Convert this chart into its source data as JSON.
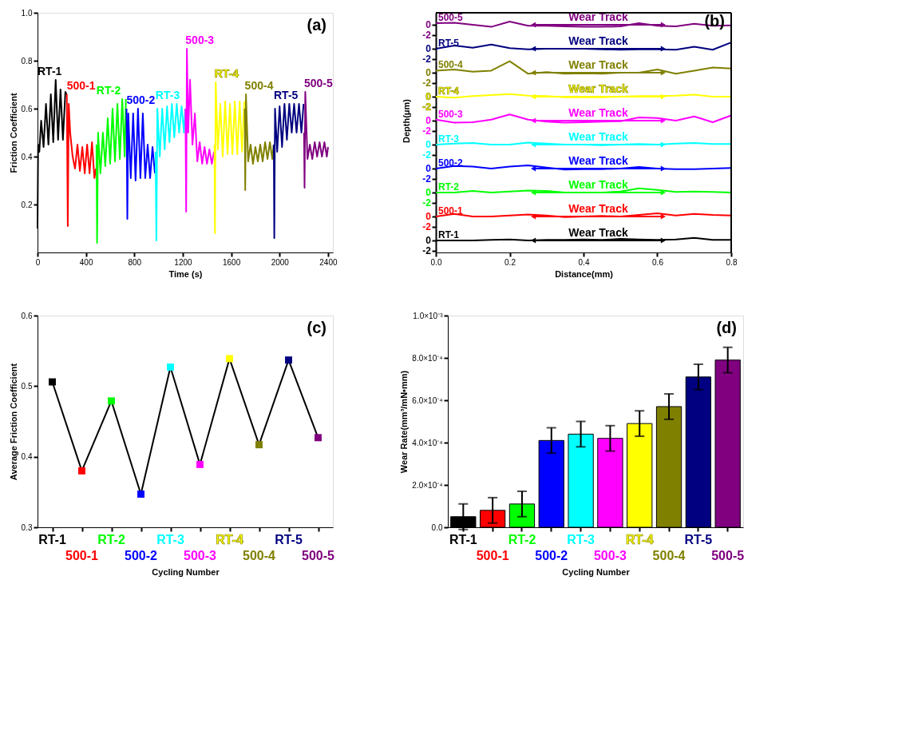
{
  "chart_data": [
    {
      "type": "line",
      "xlabel": "Time (s)",
      "ylabel": "Friction Coefficient",
      "xlim": [
        0,
        2440
      ],
      "ylim": [
        0,
        1.0
      ],
      "xticks": [
        0,
        400,
        800,
        1200,
        1600,
        2000,
        2400
      ],
      "yticks": [
        0.2,
        0.4,
        0.6,
        0.8,
        {
          "value": 1.0,
          "label": "1.0"
        }
      ],
      "grid": false,
      "legend": false,
      "annotations": [
        "(a)"
      ],
      "series": [
        {
          "name": "RT-1",
          "color": "#000000",
          "x": [
            0,
            5,
            15,
            30,
            50,
            70,
            90,
            110,
            130,
            150,
            170,
            190,
            210,
            230,
            240
          ],
          "values": [
            0.1,
            0.45,
            0.42,
            0.55,
            0.44,
            0.62,
            0.45,
            0.66,
            0.46,
            0.72,
            0.47,
            0.68,
            0.47,
            0.67,
            0.66
          ]
        },
        {
          "name": "500-1",
          "color": "#ff0000",
          "x": [
            242,
            250,
            258,
            270,
            290,
            310,
            330,
            350,
            370,
            390,
            410,
            430,
            450,
            470,
            483
          ],
          "values": [
            0.66,
            0.11,
            0.62,
            0.5,
            0.4,
            0.35,
            0.45,
            0.34,
            0.44,
            0.33,
            0.45,
            0.33,
            0.46,
            0.31,
            0.35
          ]
        },
        {
          "name": "RT-2",
          "color": "#00ff00",
          "x": [
            487,
            492,
            500,
            520,
            540,
            560,
            580,
            600,
            620,
            640,
            660,
            680,
            700,
            720,
            730
          ],
          "values": [
            0.45,
            0.04,
            0.5,
            0.33,
            0.5,
            0.36,
            0.56,
            0.37,
            0.6,
            0.38,
            0.62,
            0.39,
            0.64,
            0.4,
            0.64
          ]
        },
        {
          "name": "500-2",
          "color": "#0000ff",
          "x": [
            735,
            742,
            750,
            770,
            790,
            810,
            830,
            850,
            870,
            890,
            910,
            930,
            950,
            970
          ],
          "values": [
            0.6,
            0.14,
            0.58,
            0.31,
            0.58,
            0.3,
            0.6,
            0.31,
            0.58,
            0.31,
            0.45,
            0.31,
            0.44,
            0.33
          ]
        },
        {
          "name": "RT-3",
          "color": "#00ffff",
          "x": [
            975,
            982,
            990,
            1010,
            1030,
            1050,
            1070,
            1090,
            1110,
            1130,
            1150,
            1170,
            1190,
            1210,
            1220
          ],
          "values": [
            0.42,
            0.05,
            0.6,
            0.4,
            0.6,
            0.43,
            0.61,
            0.46,
            0.62,
            0.48,
            0.62,
            0.5,
            0.61,
            0.5,
            0.6
          ]
        },
        {
          "name": "500-3",
          "color": "#ff00ff",
          "x": [
            1222,
            1228,
            1234,
            1245,
            1260,
            1280,
            1300,
            1320,
            1340,
            1360,
            1380,
            1400,
            1420,
            1440,
            1458
          ],
          "values": [
            0.6,
            0.17,
            0.85,
            0.5,
            0.72,
            0.45,
            0.58,
            0.38,
            0.46,
            0.37,
            0.44,
            0.37,
            0.43,
            0.37,
            0.42
          ]
        },
        {
          "name": "RT-4",
          "color": "#ffff00",
          "x": [
            1462,
            1466,
            1472,
            1490,
            1510,
            1530,
            1550,
            1570,
            1590,
            1610,
            1630,
            1650,
            1670,
            1690,
            1708
          ],
          "values": [
            0.45,
            0.08,
            0.71,
            0.43,
            0.62,
            0.4,
            0.63,
            0.41,
            0.62,
            0.41,
            0.63,
            0.41,
            0.63,
            0.42,
            0.63
          ]
        },
        {
          "name": "500-4",
          "color": "#808000",
          "x": [
            1712,
            1716,
            1722,
            1740,
            1760,
            1780,
            1800,
            1820,
            1840,
            1860,
            1880,
            1900,
            1920,
            1940,
            1950
          ],
          "values": [
            0.6,
            0.26,
            0.66,
            0.38,
            0.45,
            0.37,
            0.44,
            0.38,
            0.45,
            0.38,
            0.46,
            0.39,
            0.46,
            0.39,
            0.45
          ]
        },
        {
          "name": "RT-5",
          "color": "#000080",
          "x": [
            1952,
            1956,
            1962,
            1980,
            2000,
            2020,
            2040,
            2060,
            2080,
            2100,
            2120,
            2140,
            2160,
            2180,
            2198
          ],
          "values": [
            0.45,
            0.06,
            0.6,
            0.42,
            0.61,
            0.44,
            0.62,
            0.47,
            0.62,
            0.5,
            0.62,
            0.5,
            0.62,
            0.5,
            0.62
          ]
        },
        {
          "name": "500-5",
          "color": "#800080",
          "x": [
            2202,
            2206,
            2212,
            2230,
            2250,
            2270,
            2290,
            2310,
            2330,
            2350,
            2370,
            2390,
            2400
          ],
          "values": [
            0.5,
            0.27,
            0.67,
            0.39,
            0.45,
            0.39,
            0.46,
            0.4,
            0.46,
            0.4,
            0.46,
            0.4,
            0.44
          ]
        }
      ]
    },
    {
      "type": "line",
      "title": "(b)",
      "xlim": [
        0,
        0.8
      ],
      "ylim": [
        -2.3,
        2.3
      ],
      "yticks": [
        0,
        -2
      ],
      "tick_labels": "y",
      "grid": false,
      "annotations": [
        "Wear Track"
      ],
      "series": [
        {
          "name": "500-5",
          "color": "#800080",
          "x": [
            0,
            0.05,
            0.1,
            0.15,
            0.2,
            0.25,
            0.3,
            0.35,
            0.4,
            0.45,
            0.5,
            0.55,
            0.6,
            0.65,
            0.7,
            0.75,
            0.8
          ],
          "values": [
            0.3,
            0.4,
            0,
            -0.4,
            0.6,
            -0.2,
            -0.2,
            -0.3,
            -0.4,
            -0.4,
            -0.3,
            0.3,
            -0.2,
            -0.3,
            0.2,
            -0.2,
            -0.1
          ]
        }
      ]
    },
    {
      "type": "line",
      "xlim": [
        0,
        0.8
      ],
      "ylim": [
        -2.3,
        2.3
      ],
      "yticks": [
        0,
        -2
      ],
      "tick_labels": "y",
      "grid": false,
      "annotations": [
        "Wear Track"
      ],
      "series": [
        {
          "name": "RT-5",
          "color": "#000080",
          "x": [
            0,
            0.05,
            0.1,
            0.15,
            0.2,
            0.25,
            0.3,
            0.35,
            0.4,
            0.45,
            0.5,
            0.55,
            0.6,
            0.65,
            0.7,
            0.75,
            0.8
          ],
          "values": [
            0,
            0.6,
            0.2,
            0.8,
            0.1,
            -0.1,
            0,
            0,
            0,
            -0.1,
            -0.2,
            -0.1,
            -0.1,
            -0.2,
            0.4,
            -0.2,
            1.2
          ]
        }
      ]
    },
    {
      "type": "line",
      "xlim": [
        0,
        0.8
      ],
      "ylim": [
        -2.3,
        2.3
      ],
      "yticks": [
        0,
        -2
      ],
      "tick_labels": "y",
      "grid": false,
      "annotations": [
        "Wear Track"
      ],
      "series": [
        {
          "name": "500-4",
          "color": "#808000",
          "x": [
            0,
            0.05,
            0.1,
            0.15,
            0.2,
            0.25,
            0.3,
            0.35,
            0.4,
            0.45,
            0.5,
            0.55,
            0.6,
            0.65,
            0.7,
            0.75,
            0.8
          ],
          "values": [
            0.4,
            0.6,
            0.2,
            0.4,
            2.2,
            -0.2,
            0.1,
            -0.2,
            -0.1,
            -0.2,
            0,
            0,
            0.6,
            -0.2,
            0.4,
            1,
            0.8
          ]
        }
      ]
    },
    {
      "type": "line",
      "xlim": [
        0,
        0.8
      ],
      "ylim": [
        -2.3,
        2.3
      ],
      "yticks": [
        0,
        -2
      ],
      "tick_labels": "y",
      "grid": false,
      "annotations": [
        "Wear Track"
      ],
      "series": [
        {
          "name": "RT-4",
          "color": "#ffff00",
          "x": [
            0,
            0.05,
            0.1,
            0.15,
            0.2,
            0.25,
            0.3,
            0.35,
            0.4,
            0.45,
            0.5,
            0.55,
            0.6,
            0.65,
            0.7,
            0.75,
            0.8
          ],
          "values": [
            0,
            -0.2,
            0.1,
            0.3,
            0.5,
            0.2,
            0.1,
            -0.1,
            -0.1,
            -0.1,
            0,
            0.1,
            0.1,
            0.2,
            0.4,
            0,
            0
          ]
        }
      ]
    },
    {
      "type": "line",
      "ylabel": "Depth(μm)",
      "xlim": [
        0,
        0.8
      ],
      "ylim": [
        -2.3,
        2.3
      ],
      "yticks": [
        0,
        -2
      ],
      "tick_labels": "y",
      "grid": false,
      "annotations": [
        "Wear Track"
      ],
      "series": [
        {
          "name": "500-3",
          "color": "#ff00ff",
          "x": [
            0,
            0.05,
            0.1,
            0.15,
            0.2,
            0.25,
            0.3,
            0.35,
            0.4,
            0.45,
            0.5,
            0.55,
            0.6,
            0.65,
            0.7,
            0.75,
            0.8
          ],
          "values": [
            0.2,
            -0.4,
            -0.3,
            0.2,
            1.2,
            0.2,
            -0.2,
            -0.4,
            -0.3,
            -0.2,
            -0.1,
            0.6,
            0.5,
            0,
            0.8,
            -0.3,
            1
          ]
        }
      ]
    },
    {
      "type": "line",
      "xlim": [
        0,
        0.8
      ],
      "ylim": [
        -2.3,
        2.3
      ],
      "yticks": [
        0,
        -2
      ],
      "tick_labels": "y",
      "grid": false,
      "annotations": [
        "Wear Track"
      ],
      "series": [
        {
          "name": "RT-3",
          "color": "#00ffff",
          "x": [
            0,
            0.05,
            0.1,
            0.15,
            0.2,
            0.25,
            0.3,
            0.35,
            0.4,
            0.45,
            0.5,
            0.55,
            0.6,
            0.65,
            0.7,
            0.75,
            0.8
          ],
          "values": [
            0,
            0.2,
            0.3,
            0,
            0,
            0.4,
            0.2,
            0,
            0,
            -0.1,
            0,
            0.1,
            0,
            0.2,
            0.3,
            0.1,
            0.1
          ]
        }
      ]
    },
    {
      "type": "line",
      "xlim": [
        0,
        0.8
      ],
      "ylim": [
        -2.3,
        2.3
      ],
      "yticks": [
        0,
        -2
      ],
      "tick_labels": "y",
      "grid": false,
      "annotations": [
        "Wear Track"
      ],
      "series": [
        {
          "name": "500-2",
          "color": "#0000ff",
          "x": [
            0,
            0.05,
            0.1,
            0.15,
            0.2,
            0.25,
            0.3,
            0.35,
            0.4,
            0.45,
            0.5,
            0.55,
            0.6,
            0.65,
            0.7,
            0.75,
            0.8
          ],
          "values": [
            0,
            0.5,
            0.4,
            0,
            0.4,
            0.6,
            0.2,
            -0.2,
            -0.1,
            -0.1,
            0,
            0.3,
            0,
            -0.1,
            -0.1,
            0,
            0.1
          ]
        }
      ]
    },
    {
      "type": "line",
      "xlim": [
        0,
        0.8
      ],
      "ylim": [
        -2.3,
        2.3
      ],
      "yticks": [
        0,
        -2
      ],
      "tick_labels": "y",
      "grid": false,
      "annotations": [
        "Wear Track"
      ],
      "series": [
        {
          "name": "RT-2",
          "color": "#00ff00",
          "x": [
            0,
            0.05,
            0.1,
            0.15,
            0.2,
            0.25,
            0.3,
            0.35,
            0.4,
            0.45,
            0.5,
            0.55,
            0.6,
            0.65,
            0.7,
            0.75,
            0.8
          ],
          "values": [
            0,
            0,
            0.3,
            0,
            0.2,
            0.4,
            0.3,
            0,
            0,
            0,
            0.2,
            0.8,
            0.5,
            0.1,
            0.2,
            0.1,
            0
          ]
        }
      ]
    },
    {
      "type": "line",
      "xlim": [
        0,
        0.8
      ],
      "ylim": [
        -2.3,
        2.3
      ],
      "yticks": [
        0,
        -2
      ],
      "tick_labels": "y",
      "grid": false,
      "annotations": [
        "Wear Track"
      ],
      "series": [
        {
          "name": "500-1",
          "color": "#ff0000",
          "x": [
            0,
            0.05,
            0.1,
            0.15,
            0.2,
            0.25,
            0.3,
            0.35,
            0.4,
            0.45,
            0.5,
            0.55,
            0.6,
            0.65,
            0.7,
            0.75,
            0.8
          ],
          "values": [
            0,
            0.5,
            0,
            0,
            0.2,
            0.4,
            0.2,
            -0.1,
            0,
            0.1,
            0,
            0.3,
            0.6,
            0.2,
            0.5,
            0.3,
            0.2
          ]
        }
      ]
    },
    {
      "type": "line",
      "xlabel": "Distance(mm)",
      "xlim": [
        0,
        0.8
      ],
      "ylim": [
        -2.3,
        2.3
      ],
      "xticks": [
        {
          "value": 0,
          "label": "0.0"
        },
        0.2,
        0.4,
        0.6,
        0.8
      ],
      "yticks": [
        0,
        -2
      ],
      "grid": false,
      "annotations": [
        "Wear Track"
      ],
      "series": [
        {
          "name": "RT-1",
          "color": "#000000",
          "x": [
            0,
            0.05,
            0.1,
            0.15,
            0.2,
            0.25,
            0.3,
            0.35,
            0.4,
            0.45,
            0.5,
            0.55,
            0.6,
            0.65,
            0.7,
            0.75,
            0.8
          ],
          "values": [
            0,
            0,
            0,
            0.1,
            0.2,
            0,
            0.1,
            0.1,
            0.2,
            0.1,
            0.3,
            0.2,
            0.1,
            0.2,
            0.5,
            0.1,
            0.1
          ]
        }
      ]
    },
    {
      "type": "line",
      "xlabel": "Cycling Number",
      "ylabel": "Average Friction Coefficient",
      "categories": [
        "RT-1",
        "500-1",
        "RT-2",
        "500-2",
        "RT-3",
        "500-3",
        "RT-4",
        "500-4",
        "RT-5",
        "500-5"
      ],
      "ylim": [
        0.3,
        0.6
      ],
      "yticks": [
        0.3,
        0.4,
        0.5,
        0.6
      ],
      "grid": false,
      "legend": false,
      "marker": "square",
      "line_style": "solid",
      "annotations": [
        "(c)"
      ],
      "colors": [
        "#000000",
        "#ff0000",
        "#00ff00",
        "#0000ff",
        "#00ffff",
        "#ff00ff",
        "#ffff00",
        "#808000",
        "#000080",
        "#800080"
      ],
      "series": [
        {
          "color": "#000000",
          "values": [
            0.506,
            0.38,
            0.479,
            0.347,
            0.527,
            0.389,
            0.539,
            0.417,
            0.537,
            0.427
          ]
        }
      ]
    },
    {
      "type": "bar",
      "xlabel": "Cycling Number",
      "ylabel": "Wear Rate(mm³/mN•mm)",
      "categories": [
        "RT-1",
        "500-1",
        "RT-2",
        "500-2",
        "RT-3",
        "500-3",
        "RT-4",
        "500-4",
        "RT-5",
        "500-5"
      ],
      "ylim": [
        0,
        0.001
      ],
      "yticks": [
        {
          "value": 0,
          "label": "0.0"
        },
        {
          "value": 0.0002,
          "label": "2.0×10⁻⁴"
        },
        {
          "value": 0.0004,
          "label": "4.0×10⁻⁴"
        },
        {
          "value": 0.0006,
          "label": "6.0×10⁻⁴"
        },
        {
          "value": 0.0008,
          "label": "8.0×10⁻⁴"
        },
        {
          "value": 0.001,
          "label": "1.0×10⁻³"
        }
      ],
      "grid": false,
      "annotations": [
        "(d)"
      ],
      "colors": [
        "#000000",
        "#ff0000",
        "#00ff00",
        "#0000ff",
        "#00ffff",
        "#ff00ff",
        "#ffff00",
        "#808000",
        "#000080",
        "#800080"
      ],
      "values": [
        5e-05,
        8e-05,
        0.00011,
        0.00041,
        0.00044,
        0.00042,
        0.00049,
        0.00057,
        0.00071,
        0.00079
      ],
      "errors": [
        6e-05,
        6e-05,
        6e-05,
        6e-05,
        6e-05,
        6e-05,
        6e-05,
        6e-05,
        6e-05,
        6e-05
      ]
    }
  ]
}
